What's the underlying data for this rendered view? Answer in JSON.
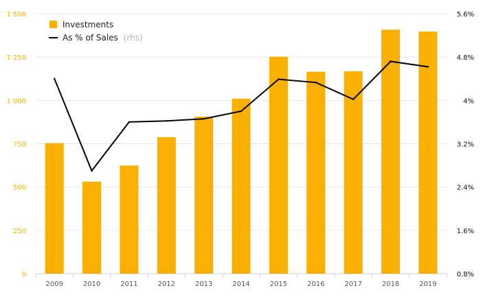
{
  "chart_data": {
    "type": "bar",
    "categories": [
      "2009",
      "2010",
      "2011",
      "2012",
      "2013",
      "2014",
      "2015",
      "2016",
      "2017",
      "2018",
      "2019"
    ],
    "series": [
      {
        "name": "Investments",
        "type": "bar",
        "axis": "left",
        "color": "#f9b000",
        "values": [
          753,
          531,
          624,
          788,
          906,
          1010,
          1252,
          1165,
          1168,
          1408,
          1397
        ]
      },
      {
        "name": "As % of Sales",
        "type": "line",
        "axis": "right",
        "color": "#000000",
        "values": [
          4.4,
          2.7,
          3.6,
          3.62,
          3.66,
          3.8,
          4.39,
          4.33,
          4.02,
          4.72,
          4.62
        ]
      }
    ],
    "legend": {
      "bar_label": "Investments",
      "line_label": "As % of Sales",
      "line_suffix": "(rhs)",
      "placement": "top-left"
    },
    "y_left": {
      "ylim": [
        0,
        1500
      ],
      "ticks": [
        0,
        250,
        500,
        750,
        1000,
        1250,
        1500
      ],
      "tick_labels": [
        "0",
        "250",
        "500",
        "750",
        "1 000",
        "1 250",
        "1 500"
      ],
      "color": "#f5b10a"
    },
    "y_right": {
      "ylim": [
        0.8,
        5.6
      ],
      "ticks": [
        0.8,
        1.6,
        2.4,
        3.2,
        4.0,
        4.8,
        5.6
      ],
      "tick_labels": [
        "0.8%",
        "1.6%",
        "2.4%",
        "3.2%",
        "4%",
        "4.8%",
        "5.6%"
      ],
      "color": "#111111"
    },
    "grid": true
  }
}
